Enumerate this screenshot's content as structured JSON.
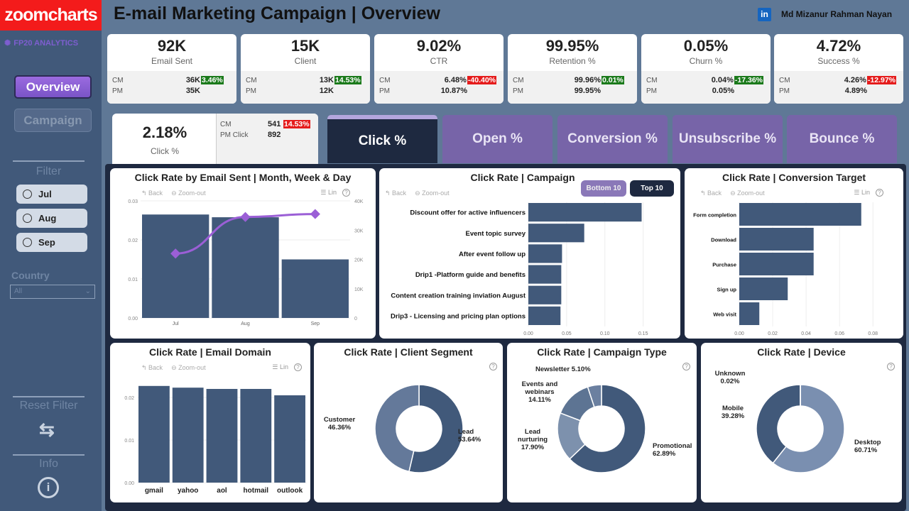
{
  "brand": {
    "logo": "zoomcharts",
    "subbrand": "FP20 ANALYTICS"
  },
  "header": {
    "title": "E-mail Marketing Campaign | Overview",
    "author": "Md Mizanur Rahman Nayan",
    "linkedin_icon": "in"
  },
  "nav": {
    "overview": "Overview",
    "campaign": "Campaign"
  },
  "filter": {
    "title": "Filter",
    "months": [
      "Jul",
      "Aug",
      "Sep"
    ],
    "country_label": "Country",
    "country_value": "All",
    "reset_label": "Reset Filter",
    "info_label": "Info"
  },
  "kpis": [
    {
      "value": "92K",
      "label": "Email Sent",
      "cm_label": "CM",
      "cm": "36K",
      "change": "3.46%",
      "change_status": "positive",
      "pm_label": "PM",
      "pm": "35K"
    },
    {
      "value": "15K",
      "label": "Client",
      "cm_label": "CM",
      "cm": "13K",
      "change": "14.53%",
      "change_status": "positive",
      "pm_label": "PM",
      "pm": "12K"
    },
    {
      "value": "9.02%",
      "label": "CTR",
      "cm_label": "CM",
      "cm": "6.48%",
      "change": "-40.40%",
      "change_status": "negative",
      "pm_label": "PM",
      "pm": "10.87%"
    },
    {
      "value": "99.95%",
      "label": "Retention %",
      "cm_label": "CM",
      "cm": "99.96%",
      "change": "0.01%",
      "change_status": "positive",
      "pm_label": "PM",
      "pm": "99.95%"
    },
    {
      "value": "0.05%",
      "label": "Churn %",
      "cm_label": "CM",
      "cm": "0.04%",
      "change": "-17.36%",
      "change_status": "positive",
      "pm_label": "PM",
      "pm": "0.05%"
    },
    {
      "value": "4.72%",
      "label": "Success %",
      "cm_label": "CM",
      "cm": "4.26%",
      "change": "-12.97%",
      "change_status": "negative",
      "pm_label": "PM",
      "pm": "4.89%"
    }
  ],
  "click_card": {
    "value": "2.18%",
    "label": "Click %",
    "cm_label": "CM",
    "cm": "541",
    "change": "14.53%",
    "pm_label": "PM Click",
    "pm": "892"
  },
  "metric_tabs": [
    "Click %",
    "Open %",
    "Conversion %",
    "Unsubscribe %",
    "Bounce %"
  ],
  "toolbar": {
    "back": "Back",
    "zoom_out": "Zoom-out",
    "lin": "Lin",
    "help": "?"
  },
  "toggles": {
    "bottom": "Bottom 10",
    "top": "Top 10"
  },
  "colors": {
    "bar": "#41597a",
    "line": "#9b5fd6",
    "positive": "#1b7a1b",
    "negative": "#e51c1c",
    "tab": "#7764a8",
    "active_tab": "#1e2940"
  },
  "chart_data": [
    {
      "id": "email-sent",
      "type": "bar",
      "title": "Click Rate by Email Sent | Month, Week & Day",
      "categories": [
        "Jul",
        "Aug",
        "Sep"
      ],
      "series": [
        {
          "name": "Click Rate",
          "axis": "left",
          "values": [
            0.0265,
            0.0258,
            0.015
          ]
        },
        {
          "name": "Email Sent",
          "axis": "right",
          "type": "line",
          "values": [
            22000,
            34500,
            35500
          ]
        }
      ],
      "ylim": [
        0,
        0.03
      ],
      "yticks": [
        "0.00",
        "0.01",
        "0.02",
        "0.03"
      ],
      "y2lim": [
        0,
        40000
      ],
      "y2ticks": [
        "0",
        "10K",
        "20K",
        "30K",
        "40K"
      ]
    },
    {
      "id": "campaign",
      "type": "bar",
      "orientation": "horizontal",
      "title": "Click Rate | Campaign",
      "categories": [
        "Discount offer for active influencers",
        "Event topic survey",
        "After event follow up",
        "Drip1 -Platform guide and benefits",
        "Content creation training inviation August",
        "Drip3 - Licensing and pricing plan options"
      ],
      "values": [
        0.148,
        0.073,
        0.044,
        0.043,
        0.043,
        0.042
      ],
      "xlim": [
        0,
        0.18
      ],
      "xticks": [
        "0.00",
        "0.05",
        "0.10",
        "0.15"
      ]
    },
    {
      "id": "conversion",
      "type": "bar",
      "orientation": "horizontal",
      "title": "Click Rate | Conversion Target",
      "categories": [
        "Form completion",
        "Download",
        "Purchase",
        "Sign up",
        "Web visit"
      ],
      "values": [
        0.073,
        0.0445,
        0.0445,
        0.029,
        0.012
      ],
      "xlim": [
        0,
        0.085
      ],
      "xticks": [
        "0.00",
        "0.02",
        "0.04",
        "0.06",
        "0.08"
      ]
    },
    {
      "id": "domain",
      "type": "bar",
      "title": "Click Rate | Email Domain",
      "categories": [
        "gmail",
        "yahoo",
        "aol",
        "hotmail",
        "outlook"
      ],
      "values": [
        0.0227,
        0.0223,
        0.022,
        0.022,
        0.0205
      ],
      "ylim": [
        0,
        0.0225
      ],
      "yticks": [
        "0.00",
        "0.01",
        "0.02"
      ]
    },
    {
      "id": "segment",
      "type": "pie",
      "title": "Click Rate | Client Segment",
      "labels": [
        "Lead",
        "Customer"
      ],
      "values": [
        53.64,
        46.36
      ],
      "value_labels": [
        "53.64%",
        "46.36%"
      ],
      "colors": [
        "#41597a",
        "#64799a"
      ]
    },
    {
      "id": "ctype",
      "type": "pie",
      "title": "Click Rate | Campaign Type",
      "labels": [
        "Promotional",
        "Lead nurturing",
        "Events and webinars",
        "Newsletter"
      ],
      "values": [
        62.89,
        17.9,
        14.11,
        5.1
      ],
      "value_labels": [
        "62.89%",
        "17.90%",
        "14.11%",
        "5.10%"
      ],
      "colors": [
        "#41597a",
        "#7d91ad",
        "#5d7493",
        "#6b80a0"
      ]
    },
    {
      "id": "device",
      "type": "pie",
      "title": "Click Rate | Device",
      "labels": [
        "Desktop",
        "Mobile",
        "Unknown"
      ],
      "values": [
        60.71,
        39.28,
        0.02
      ],
      "value_labels": [
        "60.71%",
        "39.28%",
        "0.02%"
      ],
      "colors": [
        "#7a8fb0",
        "#41597a",
        "#333"
      ]
    }
  ]
}
